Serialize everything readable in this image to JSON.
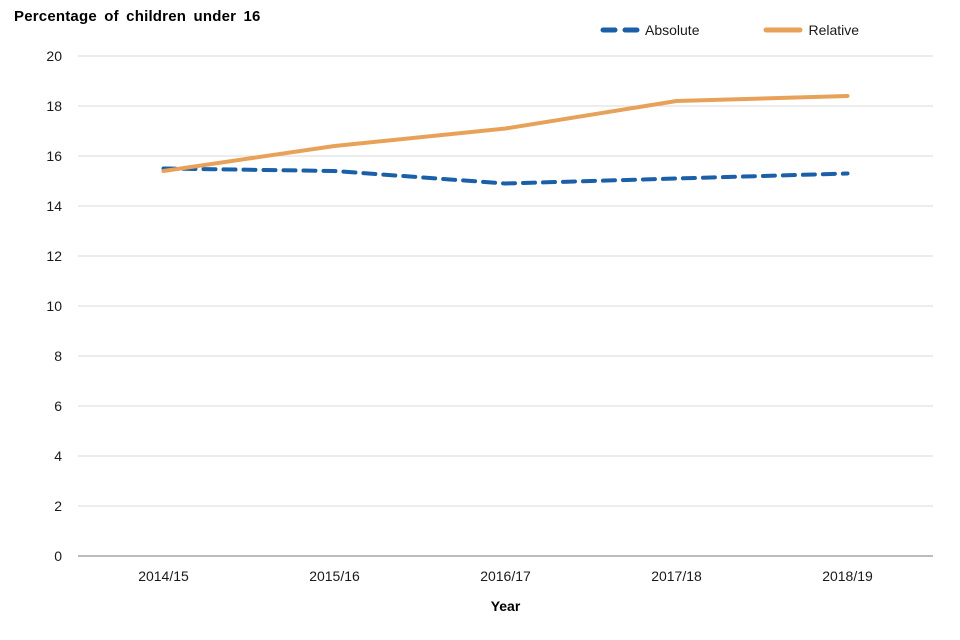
{
  "title": "Percentage of children under 16",
  "xlabel": "Year",
  "legend": [
    {
      "label": "Absolute",
      "color": "#1A5FA8",
      "style": "dashed"
    },
    {
      "label": "Relative",
      "color": "#E8A159",
      "style": "solid"
    }
  ],
  "chart_data": {
    "type": "line",
    "title": "Percentage of children under 16",
    "xlabel": "Year",
    "ylabel": "Percentage of children under 16",
    "categories": [
      "2014/15",
      "2015/16",
      "2016/17",
      "2017/18",
      "2018/19"
    ],
    "series": [
      {
        "name": "Absolute",
        "values": [
          15.5,
          15.4,
          14.9,
          15.1,
          15.3
        ],
        "color": "#1A5FA8",
        "dash": true
      },
      {
        "name": "Relative",
        "values": [
          15.4,
          16.4,
          17.1,
          18.2,
          18.4
        ],
        "color": "#E8A159",
        "dash": false
      }
    ],
    "ylim": [
      0,
      20
    ],
    "ytick_step": 2,
    "grid": true,
    "legend_position": "top-right",
    "colors": {
      "gridline": "#D9D9D9",
      "axis": "#A6A6A6",
      "text": "#1a1a1a"
    }
  }
}
